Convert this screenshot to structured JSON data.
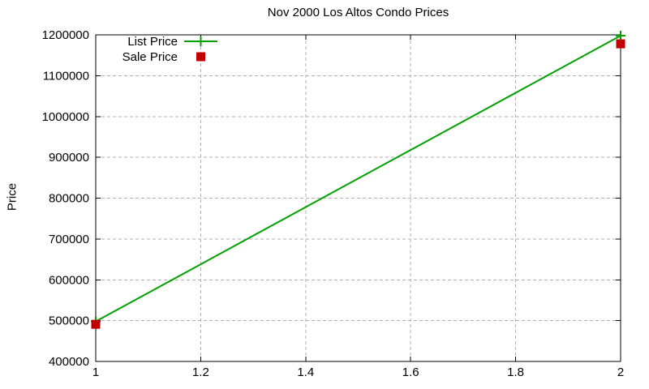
{
  "title": "Nov 2000 Los Altos Condo Prices",
  "colors": {
    "background": "#ffffff",
    "text": "#000000",
    "axis": "#000000",
    "grid": "#b0b0b0",
    "list_price": "#00a000",
    "sale_price": "#c00000"
  },
  "legend": {
    "position": "top-left-inside",
    "entries": [
      {
        "label": "List Price",
        "marker": "line-with-plus"
      },
      {
        "label": "Sale Price",
        "marker": "square"
      }
    ]
  },
  "chart_data": {
    "type": "line",
    "title": "Nov 2000 Los Altos Condo Prices",
    "xlabel": "",
    "ylabel": "Price",
    "x": [
      1,
      2
    ],
    "series": [
      {
        "name": "List Price",
        "values": [
          498000,
          1198000
        ],
        "style": "linespoints",
        "marker": "plus",
        "color": "#00a000"
      },
      {
        "name": "Sale Price",
        "values": [
          491000,
          1178000
        ],
        "style": "points",
        "marker": "square",
        "color": "#c00000"
      }
    ],
    "xlim": [
      1,
      2
    ],
    "ylim": [
      400000,
      1200000
    ],
    "xticks": [
      1,
      1.2,
      1.4,
      1.6,
      1.8,
      2
    ],
    "yticks": [
      400000,
      500000,
      600000,
      700000,
      800000,
      900000,
      1000000,
      1100000,
      1200000
    ],
    "grid": true,
    "grid_style": "dashed",
    "legend_position": "top-left-inside"
  }
}
